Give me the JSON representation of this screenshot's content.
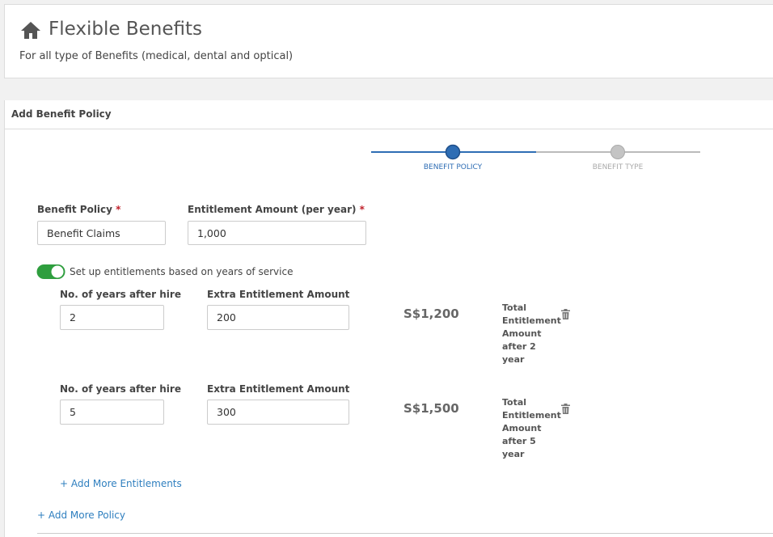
{
  "header": {
    "title": "Flexible Benefits",
    "subtitle": "For all type of Benefits (medical, dental and optical)"
  },
  "panel": {
    "title": "Add Benefit Policy"
  },
  "steps": [
    "BENEFIT POLICY",
    "BENEFIT TYPE"
  ],
  "required_mark": "*",
  "form": {
    "benefit_policy": {
      "label": "Benefit Policy",
      "value": "Benefit Claims"
    },
    "entitlement": {
      "label": "Entitlement Amount (per year)",
      "value": "1,000"
    },
    "toggle_label": "Set up entitlements based on years of service",
    "rows": [
      {
        "years_label": "No. of years after hire",
        "years": "2",
        "extra_label": "Extra Entitlement Amount",
        "extra": "200",
        "total": "S$1,200",
        "note": "Total Entitlement Amount after 2 year"
      },
      {
        "years_label": "No. of years after hire",
        "years": "5",
        "extra_label": "Extra Entitlement Amount",
        "extra": "300",
        "total": "S$1,500",
        "note": "Total Entitlement Amount after 5 year"
      }
    ],
    "add_entitlements": "+ Add More Entitlements",
    "add_policy": "+ Add More Policy"
  }
}
